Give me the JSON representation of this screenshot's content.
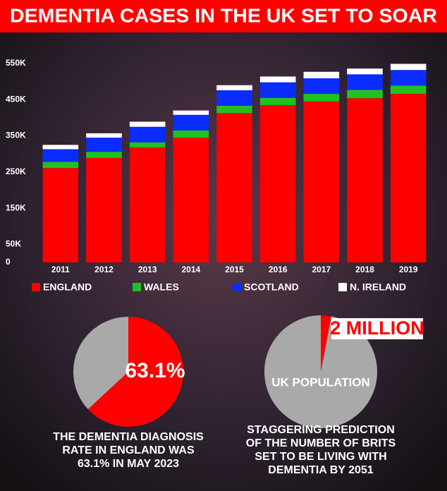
{
  "chart_data": [
    {
      "type": "bar",
      "stacked": true,
      "title": "DEMENTIA CASES IN THE UK SET TO SOAR",
      "categories": [
        "2011",
        "2012",
        "2013",
        "2014",
        "2015",
        "2016",
        "2017",
        "2018",
        "2019"
      ],
      "series": [
        {
          "name": "ENGLAND",
          "color": "#ff0000",
          "values": [
            261000,
            289000,
            318000,
            345000,
            413000,
            435000,
            445000,
            454000,
            466000
          ]
        },
        {
          "name": "WALES",
          "color": "#1fc21f",
          "values": [
            17000,
            17000,
            14000,
            20000,
            20000,
            20000,
            21000,
            23000,
            23000
          ]
        },
        {
          "name": "SCOTLAND",
          "color": "#0a2cff",
          "values": [
            35000,
            39000,
            43000,
            43000,
            43000,
            43000,
            43000,
            43000,
            43000
          ]
        },
        {
          "name": "N. IRELAND",
          "color": "#ffffff",
          "values": [
            12000,
            12000,
            14000,
            12000,
            14000,
            16000,
            18000,
            16000,
            17000
          ]
        }
      ],
      "ylim": [
        0,
        550000
      ],
      "yticks": [
        0,
        {
          "value": 50000,
          "label": "50K"
        },
        {
          "value": 150000,
          "label": "150K"
        },
        {
          "value": 250000,
          "label": "250K"
        },
        {
          "value": 350000,
          "label": "350K"
        },
        {
          "value": 450000,
          "label": "450K"
        },
        {
          "value": 550000,
          "label": "550K"
        }
      ]
    },
    {
      "type": "pie",
      "values": [
        63.1,
        36.9
      ],
      "colors": [
        "#ff0000",
        "#a9a9a9"
      ],
      "value_labels": [
        "63.1%",
        null
      ],
      "caption": [
        "THE DEMENTIA DIAGNOSIS",
        "RATE IN ENGLAND WAS",
        "63.1% IN MAY 2023"
      ]
    },
    {
      "type": "pie",
      "values": [
        2000000,
        65000000
      ],
      "colors": [
        "#ff0000",
        "#a9a9a9"
      ],
      "labels": [
        "2 MILLION",
        "UK POPULATION"
      ],
      "caption": [
        "STAGGERING PREDICTION",
        "OF THE NUMBER OF BRITS",
        "SET TO BE LIVING WITH",
        "DEMENTIA BY 2051"
      ]
    }
  ]
}
